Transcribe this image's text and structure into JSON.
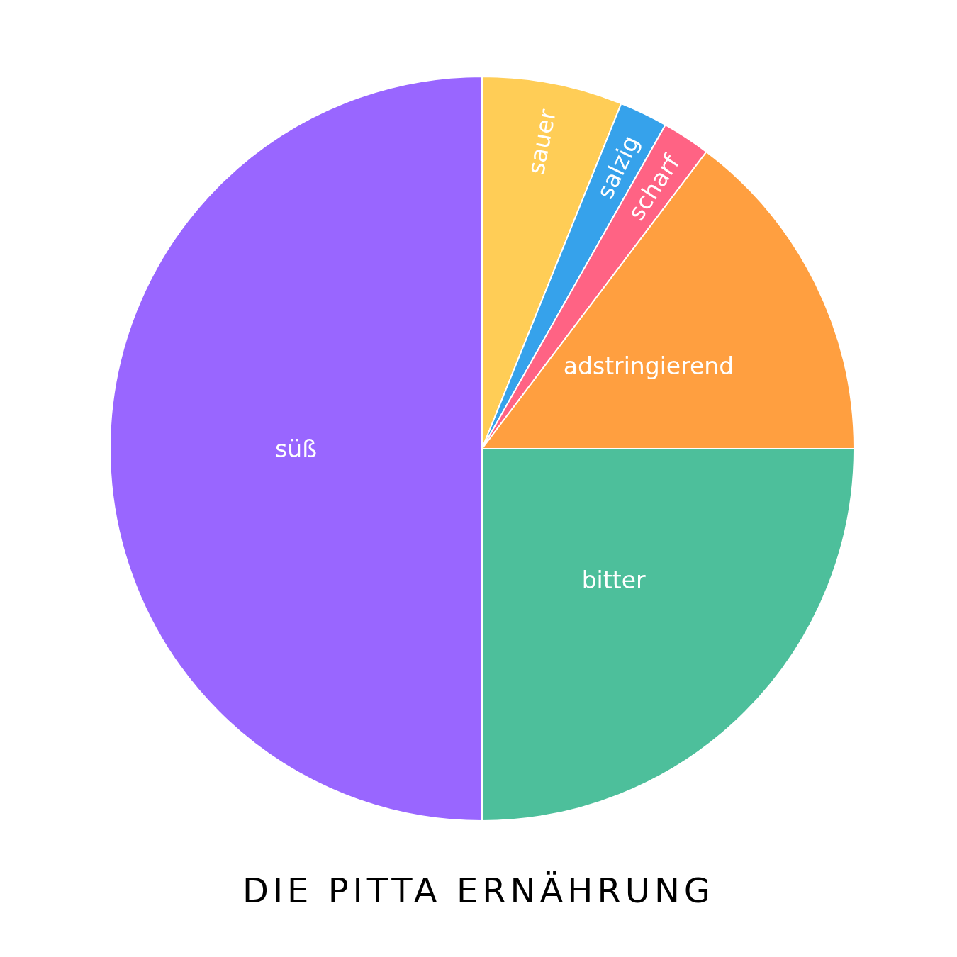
{
  "chart_data": {
    "type": "pie",
    "title": "DIE PITTA ERNÄHRUNG",
    "categories": [
      "sauer",
      "salzig",
      "scharf",
      "adstringierend",
      "bitter",
      "süß"
    ],
    "values": [
      6.1,
      2.1,
      2.1,
      14.7,
      25,
      50
    ],
    "colors": [
      "#ffcd56",
      "#36a2eb",
      "#ff6384",
      "#ff9f40",
      "#4dbf9b",
      "#9966ff"
    ]
  }
}
